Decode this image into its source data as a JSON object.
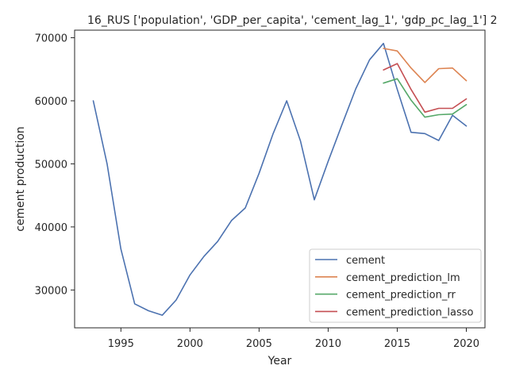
{
  "chart_data": {
    "type": "line",
    "title": "16_RUS ['population', 'GDP_per_capita', 'cement_lag_1', 'gdp_pc_lag_1'] 2",
    "xlabel": "Year",
    "ylabel": "cement production",
    "xlim": [
      1991.65,
      2021.35
    ],
    "ylim": [
      24000,
      71200
    ],
    "xticks": [
      1995,
      2000,
      2005,
      2010,
      2015,
      2020
    ],
    "yticks": [
      30000,
      40000,
      50000,
      60000,
      70000
    ],
    "ytick_labels": [
      "30000",
      "40000",
      "50000",
      "60000",
      "70000"
    ],
    "grid": false,
    "legend_position": "lower right",
    "series": [
      {
        "name": "cement",
        "color": "#4c72b0",
        "x": [
          1993,
          1994,
          1995,
          1996,
          1997,
          1998,
          1999,
          2000,
          2001,
          2002,
          2003,
          2004,
          2005,
          2006,
          2007,
          2008,
          2009,
          2010,
          2011,
          2012,
          2013,
          2014,
          2015,
          2016,
          2017,
          2018,
          2019,
          2020
        ],
        "y": [
          60000,
          50000,
          36500,
          27800,
          26700,
          26000,
          28400,
          32400,
          35300,
          37700,
          41000,
          43000,
          48500,
          54700,
          60000,
          53600,
          44300,
          50400,
          56200,
          61900,
          66500,
          69100,
          61800,
          55000,
          54800,
          53700,
          57700,
          56000
        ]
      },
      {
        "name": "cement_prediction_lm",
        "color": "#dd8452",
        "x": [
          2014,
          2015,
          2016,
          2017,
          2018,
          2019,
          2020
        ],
        "y": [
          68300,
          67900,
          65200,
          62900,
          65100,
          65200,
          63200
        ]
      },
      {
        "name": "cement_prediction_rr",
        "color": "#55a868",
        "x": [
          2014,
          2015,
          2016,
          2017,
          2018,
          2019,
          2020
        ],
        "y": [
          62800,
          63500,
          60100,
          57400,
          57800,
          57900,
          59400
        ]
      },
      {
        "name": "cement_prediction_lasso",
        "color": "#c44e52",
        "x": [
          2014,
          2015,
          2016,
          2017,
          2018,
          2019,
          2020
        ],
        "y": [
          64900,
          65900,
          61800,
          58200,
          58800,
          58800,
          60300
        ]
      }
    ]
  }
}
